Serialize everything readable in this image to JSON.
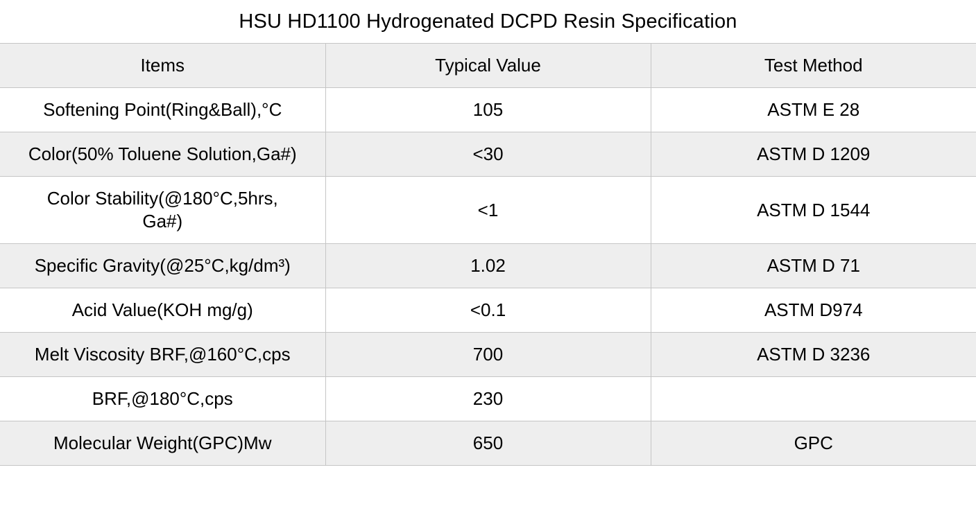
{
  "title": "HSU HD1100 Hydrogenated DCPD Resin Specification",
  "table": {
    "columns": [
      "Items",
      "Typical Value",
      "Test Method"
    ],
    "rows": [
      {
        "item": "Softening Point(Ring&Ball),°C",
        "value": "105",
        "method": "ASTM E 28"
      },
      {
        "item": "Color(50% Toluene Solution,Ga#)",
        "value": "<30",
        "method": "ASTM D 1209"
      },
      {
        "item": "Color Stability(@180°C,5hrs,\nGa#)",
        "value": "<1",
        "method": "ASTM D 1544"
      },
      {
        "item": "Specific Gravity(@25°C,kg/dm³)",
        "value": "1.02",
        "method": "ASTM D 71"
      },
      {
        "item": "Acid Value(KOH mg/g)",
        "value": "<0.1",
        "method": "ASTM D974"
      },
      {
        "item": "Melt Viscosity BRF,@160°C,cps",
        "value": "700",
        "method": "ASTM D 3236"
      },
      {
        "item": "BRF,@180°C,cps",
        "value": "230",
        "method": ""
      },
      {
        "item": "Molecular Weight(GPC)Mw",
        "value": "650",
        "method": "GPC"
      }
    ]
  },
  "colors": {
    "stripe_bg": "#eeeeee",
    "row_bg": "#ffffff",
    "border": "#c5c5c5",
    "text": "#000000"
  }
}
